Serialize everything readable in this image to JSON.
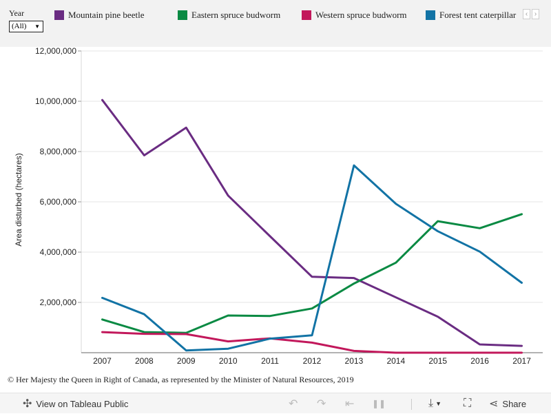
{
  "filter": {
    "label": "Year",
    "value": "(All)"
  },
  "legend": [
    {
      "name": "Mountain pine beetle",
      "color": "#6a2c82"
    },
    {
      "name": "Eastern spruce budworm",
      "color": "#0a8a43"
    },
    {
      "name": "Western spruce budworm",
      "color": "#c2185b"
    },
    {
      "name": "Forest tent caterpillar",
      "color": "#1273a5"
    }
  ],
  "copyright": "© Her Majesty the Queen in Right of Canada, as represented by the Minister of Natural Resources, 2019",
  "toolbar": {
    "view_label": "View on Tableau Public",
    "share_label": "Share"
  },
  "icons": [
    "tableau-logo-icon",
    "undo-icon",
    "redo-icon",
    "revert-icon",
    "pause-icon",
    "download-icon",
    "fullscreen-icon",
    "share-icon"
  ],
  "chart_data": {
    "type": "line",
    "title": "",
    "xlabel": "",
    "ylabel": "Area disturbed (hectares)",
    "categories": [
      "2007",
      "2008",
      "2009",
      "2010",
      "2011",
      "2012",
      "2013",
      "2014",
      "2015",
      "2016",
      "2017"
    ],
    "ylim": [
      0,
      12000000
    ],
    "yticks": [
      2000000,
      4000000,
      6000000,
      8000000,
      10000000,
      12000000
    ],
    "ytick_labels": [
      "2,000,000",
      "4,000,000",
      "6,000,000",
      "8,000,000",
      "10,000,000",
      "12,000,000"
    ],
    "grid": true,
    "legend_position": "top",
    "series": [
      {
        "name": "Mountain pine beetle",
        "color": "#6a2c82",
        "values": [
          10050000,
          7850000,
          8950000,
          6250000,
          4630000,
          3020000,
          2970000,
          2200000,
          1430000,
          330000,
          270000
        ]
      },
      {
        "name": "Eastern spruce budworm",
        "color": "#0a8a43",
        "values": [
          1320000,
          820000,
          790000,
          1480000,
          1460000,
          1760000,
          2750000,
          3580000,
          5230000,
          4950000,
          5510000
        ]
      },
      {
        "name": "Western spruce budworm",
        "color": "#c2185b",
        "values": [
          820000,
          750000,
          740000,
          450000,
          570000,
          400000,
          70000,
          0,
          0,
          0,
          0
        ]
      },
      {
        "name": "Forest tent caterpillar",
        "color": "#1273a5",
        "values": [
          2180000,
          1530000,
          90000,
          160000,
          560000,
          690000,
          7450000,
          5920000,
          4830000,
          4020000,
          2780000
        ]
      }
    ]
  }
}
